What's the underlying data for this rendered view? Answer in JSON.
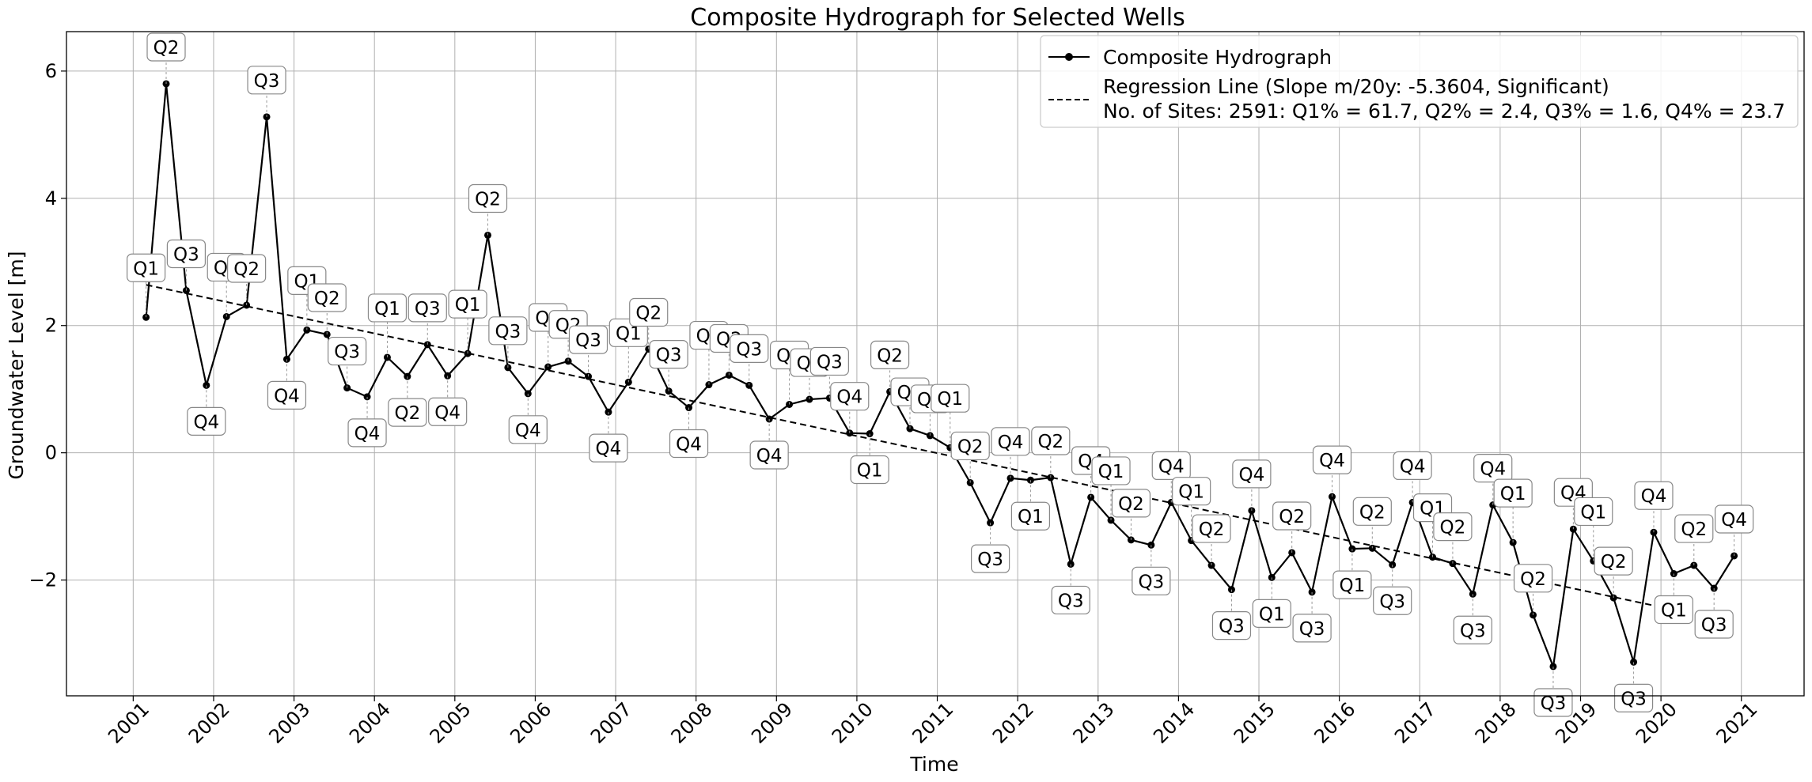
{
  "chart_data": {
    "type": "line",
    "title": "Composite Hydrograph for Selected Wells",
    "xlabel": "Time",
    "ylabel": "Groundwater Level [m]",
    "xlim": [
      2000.17,
      2021.78
    ],
    "ylim": [
      -3.82,
      6.62
    ],
    "x_ticks": [
      "2001",
      "2002",
      "2003",
      "2004",
      "2005",
      "2006",
      "2007",
      "2008",
      "2009",
      "2010",
      "2011",
      "2012",
      "2013",
      "2014",
      "2015",
      "2016",
      "2017",
      "2018",
      "2019",
      "2020",
      "2021"
    ],
    "y_ticks": [
      {
        "value": -2,
        "label": "−2"
      },
      {
        "value": 0,
        "label": "0"
      },
      {
        "value": 2,
        "label": "2"
      },
      {
        "value": 4,
        "label": "4"
      },
      {
        "value": 6,
        "label": "6"
      }
    ],
    "grid": true,
    "legend_position": "top-right",
    "series": [
      {
        "name": "Composite Hydrograph",
        "color": "#000000",
        "marker": "circle",
        "points": [
          {
            "x": 2001.16,
            "y": 2.13,
            "label": "Q1"
          },
          {
            "x": 2001.41,
            "y": 5.8,
            "label": "Q2"
          },
          {
            "x": 2001.66,
            "y": 2.55,
            "label": "Q3"
          },
          {
            "x": 2001.91,
            "y": 1.06,
            "label": "Q4"
          },
          {
            "x": 2002.16,
            "y": 2.14,
            "label": "Q1"
          },
          {
            "x": 2002.41,
            "y": 2.32,
            "label": "Q2"
          },
          {
            "x": 2002.66,
            "y": 5.28,
            "label": "Q3"
          },
          {
            "x": 2002.91,
            "y": 1.47,
            "label": "Q4"
          },
          {
            "x": 2003.16,
            "y": 1.93,
            "label": "Q1"
          },
          {
            "x": 2003.41,
            "y": 1.86,
            "label": "Q2"
          },
          {
            "x": 2003.66,
            "y": 1.02,
            "label": "Q3"
          },
          {
            "x": 2003.91,
            "y": 0.88,
            "label": "Q4"
          },
          {
            "x": 2004.16,
            "y": 1.5,
            "label": "Q1"
          },
          {
            "x": 2004.41,
            "y": 1.2,
            "label": "Q2"
          },
          {
            "x": 2004.66,
            "y": 1.7,
            "label": "Q3"
          },
          {
            "x": 2004.91,
            "y": 1.21,
            "label": "Q4"
          },
          {
            "x": 2005.16,
            "y": 1.56,
            "label": "Q1"
          },
          {
            "x": 2005.41,
            "y": 3.42,
            "label": "Q2"
          },
          {
            "x": 2005.66,
            "y": 1.34,
            "label": "Q3"
          },
          {
            "x": 2005.91,
            "y": 0.93,
            "label": "Q4"
          },
          {
            "x": 2006.16,
            "y": 1.35,
            "label": "Q1"
          },
          {
            "x": 2006.41,
            "y": 1.44,
            "label": "Q2"
          },
          {
            "x": 2006.66,
            "y": 1.2,
            "label": "Q3"
          },
          {
            "x": 2006.91,
            "y": 0.64,
            "label": "Q4"
          },
          {
            "x": 2007.16,
            "y": 1.11,
            "label": "Q1"
          },
          {
            "x": 2007.41,
            "y": 1.63,
            "label": "Q2"
          },
          {
            "x": 2007.66,
            "y": 0.97,
            "label": "Q3"
          },
          {
            "x": 2007.91,
            "y": 0.71,
            "label": "Q4"
          },
          {
            "x": 2008.16,
            "y": 1.07,
            "label": "Q1"
          },
          {
            "x": 2008.41,
            "y": 1.22,
            "label": "Q2"
          },
          {
            "x": 2008.66,
            "y": 1.06,
            "label": "Q3"
          },
          {
            "x": 2008.91,
            "y": 0.53,
            "label": "Q4"
          },
          {
            "x": 2009.16,
            "y": 0.76,
            "label": "Q1"
          },
          {
            "x": 2009.41,
            "y": 0.84,
            "label": "Q2"
          },
          {
            "x": 2009.66,
            "y": 0.86,
            "label": "Q3"
          },
          {
            "x": 2009.91,
            "y": 0.31,
            "label": "Q4"
          },
          {
            "x": 2010.16,
            "y": 0.3,
            "label": "Q1"
          },
          {
            "x": 2010.41,
            "y": 0.96,
            "label": "Q2"
          },
          {
            "x": 2010.66,
            "y": 0.38,
            "label": "Q3"
          },
          {
            "x": 2010.91,
            "y": 0.27,
            "label": "Q4"
          },
          {
            "x": 2011.16,
            "y": 0.08,
            "label": "Q1"
          },
          {
            "x": 2011.41,
            "y": -0.47,
            "label": "Q2"
          },
          {
            "x": 2011.66,
            "y": -1.1,
            "label": "Q3"
          },
          {
            "x": 2011.91,
            "y": -0.4,
            "label": "Q4"
          },
          {
            "x": 2012.16,
            "y": -0.43,
            "label": "Q1"
          },
          {
            "x": 2012.41,
            "y": -0.39,
            "label": "Q2"
          },
          {
            "x": 2012.66,
            "y": -1.75,
            "label": "Q3"
          },
          {
            "x": 2012.91,
            "y": -0.7,
            "label": "Q4"
          },
          {
            "x": 2013.16,
            "y": -1.06,
            "label": "Q1"
          },
          {
            "x": 2013.41,
            "y": -1.37,
            "label": "Q2"
          },
          {
            "x": 2013.66,
            "y": -1.45,
            "label": "Q3"
          },
          {
            "x": 2013.91,
            "y": -0.78,
            "label": "Q4"
          },
          {
            "x": 2014.16,
            "y": -1.38,
            "label": "Q1"
          },
          {
            "x": 2014.41,
            "y": -1.77,
            "label": "Q2"
          },
          {
            "x": 2014.66,
            "y": -2.15,
            "label": "Q3"
          },
          {
            "x": 2014.91,
            "y": -0.91,
            "label": "Q4"
          },
          {
            "x": 2015.16,
            "y": -1.96,
            "label": "Q1"
          },
          {
            "x": 2015.41,
            "y": -1.57,
            "label": "Q2"
          },
          {
            "x": 2015.66,
            "y": -2.19,
            "label": "Q3"
          },
          {
            "x": 2015.91,
            "y": -0.69,
            "label": "Q4"
          },
          {
            "x": 2016.16,
            "y": -1.51,
            "label": "Q1"
          },
          {
            "x": 2016.41,
            "y": -1.5,
            "label": "Q2"
          },
          {
            "x": 2016.66,
            "y": -1.76,
            "label": "Q3"
          },
          {
            "x": 2016.91,
            "y": -0.78,
            "label": "Q4"
          },
          {
            "x": 2017.16,
            "y": -1.64,
            "label": "Q1"
          },
          {
            "x": 2017.41,
            "y": -1.74,
            "label": "Q2"
          },
          {
            "x": 2017.66,
            "y": -2.22,
            "label": "Q3"
          },
          {
            "x": 2017.91,
            "y": -0.82,
            "label": "Q4"
          },
          {
            "x": 2018.16,
            "y": -1.41,
            "label": "Q1"
          },
          {
            "x": 2018.41,
            "y": -2.55,
            "label": "Q2"
          },
          {
            "x": 2018.66,
            "y": -3.36,
            "label": "Q3"
          },
          {
            "x": 2018.91,
            "y": -1.2,
            "label": "Q4"
          },
          {
            "x": 2019.16,
            "y": -1.7,
            "label": "Q1"
          },
          {
            "x": 2019.41,
            "y": -2.28,
            "label": "Q2"
          },
          {
            "x": 2019.66,
            "y": -3.29,
            "label": "Q3"
          },
          {
            "x": 2019.91,
            "y": -1.25,
            "label": "Q4"
          },
          {
            "x": 2020.16,
            "y": -1.9,
            "label": "Q1"
          },
          {
            "x": 2020.41,
            "y": -1.77,
            "label": "Q2"
          },
          {
            "x": 2020.66,
            "y": -2.13,
            "label": "Q3"
          },
          {
            "x": 2020.91,
            "y": -1.62,
            "label": "Q4"
          }
        ]
      },
      {
        "name": "Regression Line (Slope m/20y: -5.3604, Significant)",
        "color": "#000000",
        "line_style": "dashed",
        "points": [
          {
            "x": 2001.16,
            "y": 2.64
          },
          {
            "x": 2020.91,
            "y": -2.67
          }
        ]
      }
    ],
    "legend_entries": [
      "Composite Hydrograph",
      "Regression Line (Slope m/20y: -5.3604, Significant)",
      "No. of Sites: 2591: Q1% = 61.7, Q2% = 2.4, Q3% = 1.6, Q4% = 23.7"
    ]
  }
}
